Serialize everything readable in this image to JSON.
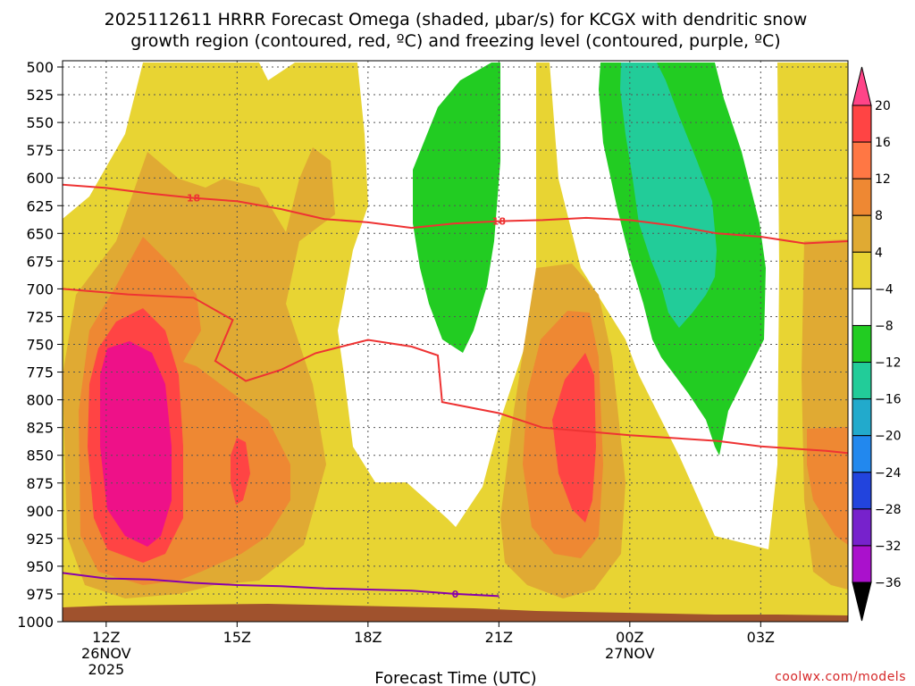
{
  "chart_data": {
    "type": "heatmap",
    "title_lines": [
      "2025112611 HRRR Forecast Omega (shaded, μbar/s) for KCGX with dendritic snow",
      "growth region (contoured, red, ºC) and freezing level (contoured, purple, ºC)"
    ],
    "xlabel": "Forecast Time (UTC)",
    "ylabel": "",
    "x_axis": {
      "unit": "forecast hour",
      "range": [
        -1,
        17
      ],
      "ticks": [
        {
          "value": 0,
          "label": "12Z",
          "sub": [
            "26NOV",
            "2025"
          ]
        },
        {
          "value": 3,
          "label": "15Z",
          "sub": []
        },
        {
          "value": 6,
          "label": "18Z",
          "sub": []
        },
        {
          "value": 9,
          "label": "21Z",
          "sub": []
        },
        {
          "value": 12,
          "label": "00Z",
          "sub": [
            "27NOV"
          ]
        },
        {
          "value": 15,
          "label": "03Z",
          "sub": []
        }
      ]
    },
    "y_axis": {
      "unit": "hPa",
      "range": [
        1000,
        500
      ],
      "ticks": [
        "500",
        "525",
        "550",
        "575",
        "600",
        "625",
        "650",
        "675",
        "700",
        "725",
        "750",
        "775",
        "800",
        "825",
        "850",
        "875",
        "900",
        "925",
        "950",
        "975",
        "1000"
      ]
    },
    "colorbar": {
      "labels": [
        "20",
        "16",
        "12",
        "8",
        "4",
        "−4",
        "−8",
        "−12",
        "−16",
        "−20",
        "−24",
        "−28",
        "−32",
        "−36"
      ],
      "colors_top_to_bottom": [
        "#ff4488",
        "#ff4444",
        "#ff7744",
        "#ee8833",
        "#e0aa33",
        "#e8d433",
        "#ffffff",
        "#22cc22",
        "#22cc99",
        "#22aacc",
        "#2288ee",
        "#2244dd",
        "#7722cc",
        "#aa11cc",
        "#aaaaaa",
        "#000000"
      ]
    },
    "shading_levels": [
      {
        "name": "4 to 8",
        "color": "#e8d433"
      },
      {
        "name": "8 to 12",
        "color": "#e0aa33"
      },
      {
        "name": "12 to 16",
        "color": "#ee8833"
      },
      {
        "name": "16 to 20",
        "color": "#ff4444"
      },
      {
        "name": "over 20",
        "color": "#ee1188"
      },
      {
        "name": "-4 to -8",
        "color": "#22cc22"
      },
      {
        "name": "-8 to -12",
        "color": "#22cc99"
      }
    ],
    "contours": [
      {
        "name": "dendritic -12C",
        "color": "#ee3333",
        "label": "",
        "points": [
          [
            -1,
            700
          ],
          [
            0.5,
            705
          ],
          [
            2,
            708
          ],
          [
            2.9,
            728
          ],
          [
            2.5,
            765
          ],
          [
            3.2,
            783
          ],
          [
            4,
            773
          ],
          [
            4.8,
            758
          ],
          [
            6,
            746
          ],
          [
            7,
            752
          ],
          [
            7.6,
            760
          ],
          [
            7.7,
            802
          ],
          [
            9,
            812
          ],
          [
            10,
            825
          ],
          [
            12,
            832
          ],
          [
            14,
            837
          ],
          [
            15,
            842
          ],
          [
            16.5,
            846
          ],
          [
            17,
            848
          ]
        ]
      },
      {
        "name": "dendritic -18C",
        "color": "#ee3333",
        "label": "18",
        "points": [
          [
            -1,
            606
          ],
          [
            0,
            609
          ],
          [
            1,
            614
          ],
          [
            2,
            618
          ],
          [
            3,
            621
          ],
          [
            4,
            628
          ],
          [
            5,
            637
          ],
          [
            6,
            640
          ],
          [
            7,
            645
          ],
          [
            8,
            641
          ],
          [
            9,
            639
          ],
          [
            10,
            638
          ],
          [
            11,
            636
          ],
          [
            12,
            638
          ],
          [
            13,
            643
          ],
          [
            14,
            650
          ],
          [
            15,
            653
          ],
          [
            16,
            659
          ],
          [
            17,
            657
          ]
        ]
      },
      {
        "name": "freezing level 0C",
        "color": "#8800aa",
        "label": "0",
        "points": [
          [
            -1,
            956
          ],
          [
            0,
            961
          ],
          [
            1,
            962
          ],
          [
            2,
            965
          ],
          [
            3,
            967
          ],
          [
            4,
            968
          ],
          [
            5,
            970
          ],
          [
            6,
            971
          ],
          [
            7,
            972
          ],
          [
            8,
            975
          ],
          [
            9,
            977
          ]
        ]
      }
    ],
    "terrain_color": "#a0522d",
    "annotation": "coolwx.com/models"
  }
}
